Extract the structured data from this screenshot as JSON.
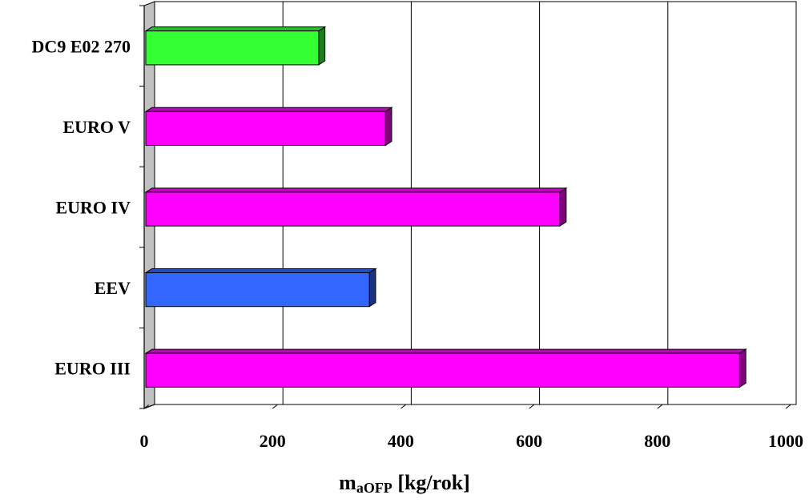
{
  "chart_data": {
    "type": "bar",
    "orientation": "horizontal",
    "categories": [
      "DC9 E02 270",
      "EURO V",
      "EURO IV",
      "EEV",
      "EURO III"
    ],
    "values": [
      272,
      376,
      648,
      351,
      928
    ],
    "colors": [
      "#33ff33",
      "#ff00ff",
      "#ff00ff",
      "#3366ff",
      "#ff00ff"
    ],
    "xlim": [
      0,
      1000
    ],
    "xticks": [
      0,
      200,
      400,
      600,
      800,
      1000
    ],
    "xlabel": {
      "main": "m",
      "sub": "aOFP",
      "unit": " [kg/rok]"
    },
    "grid": true,
    "three_d": true
  }
}
